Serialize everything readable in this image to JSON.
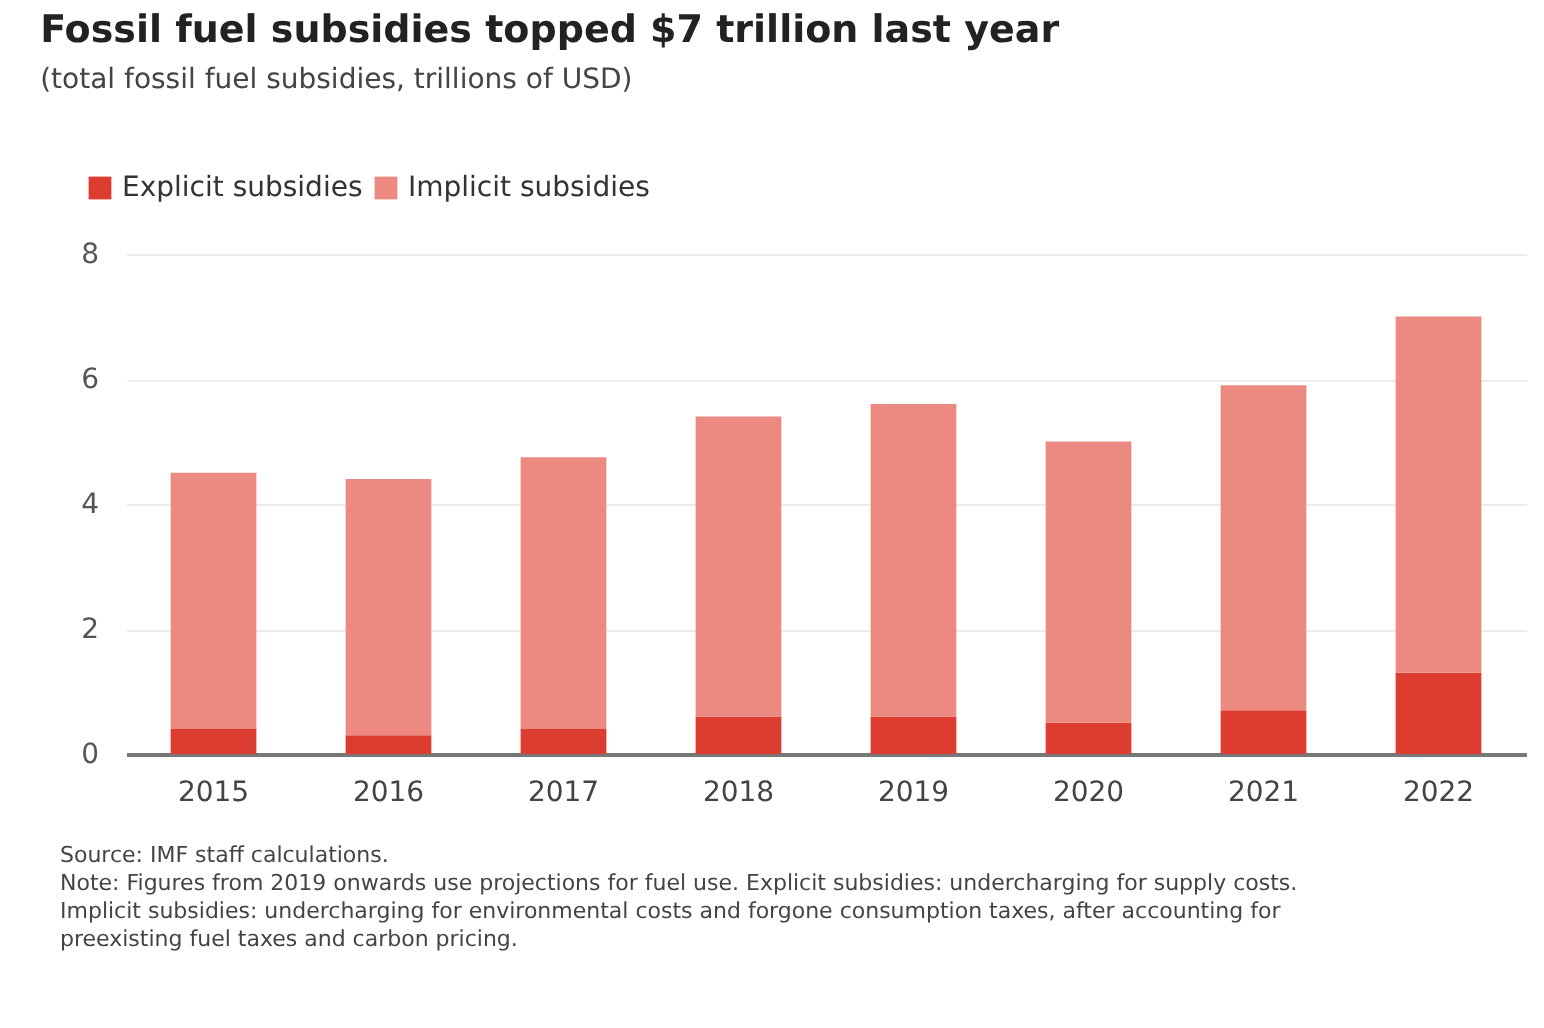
{
  "chart_data": {
    "type": "bar",
    "title": "Fossil fuel subsidies topped $7 trillion last year",
    "subtitle": "(total fossil fuel subsidies, trillions of USD)",
    "categories": [
      "2015",
      "2016",
      "2017",
      "2018",
      "2019",
      "2020",
      "2021",
      "2022"
    ],
    "series": [
      {
        "name": "Explicit subsidies",
        "color": "#dc3d30",
        "values": [
          0.4,
          0.3,
          0.4,
          0.6,
          0.6,
          0.5,
          0.7,
          1.3
        ]
      },
      {
        "name": "Implicit subsidies",
        "color": "#ec8a82",
        "values": [
          4.1,
          4.1,
          4.35,
          4.8,
          5.0,
          4.5,
          5.2,
          5.7
        ]
      }
    ],
    "stacked": true,
    "ylim": [
      0,
      8
    ],
    "yticks": [
      0,
      2,
      4,
      6,
      8
    ],
    "grid": "y",
    "legend": "top left",
    "annotations": [
      "Source: IMF staff calculations.",
      "Note: Figures from 2019 onwards use projections for fuel use. Explicit subsidies: undercharging for supply costs.",
      "Implicit subsidies: undercharging for environmental costs and forgone consumption taxes, after accounting for",
      "preexisting fuel taxes and carbon pricing."
    ]
  }
}
